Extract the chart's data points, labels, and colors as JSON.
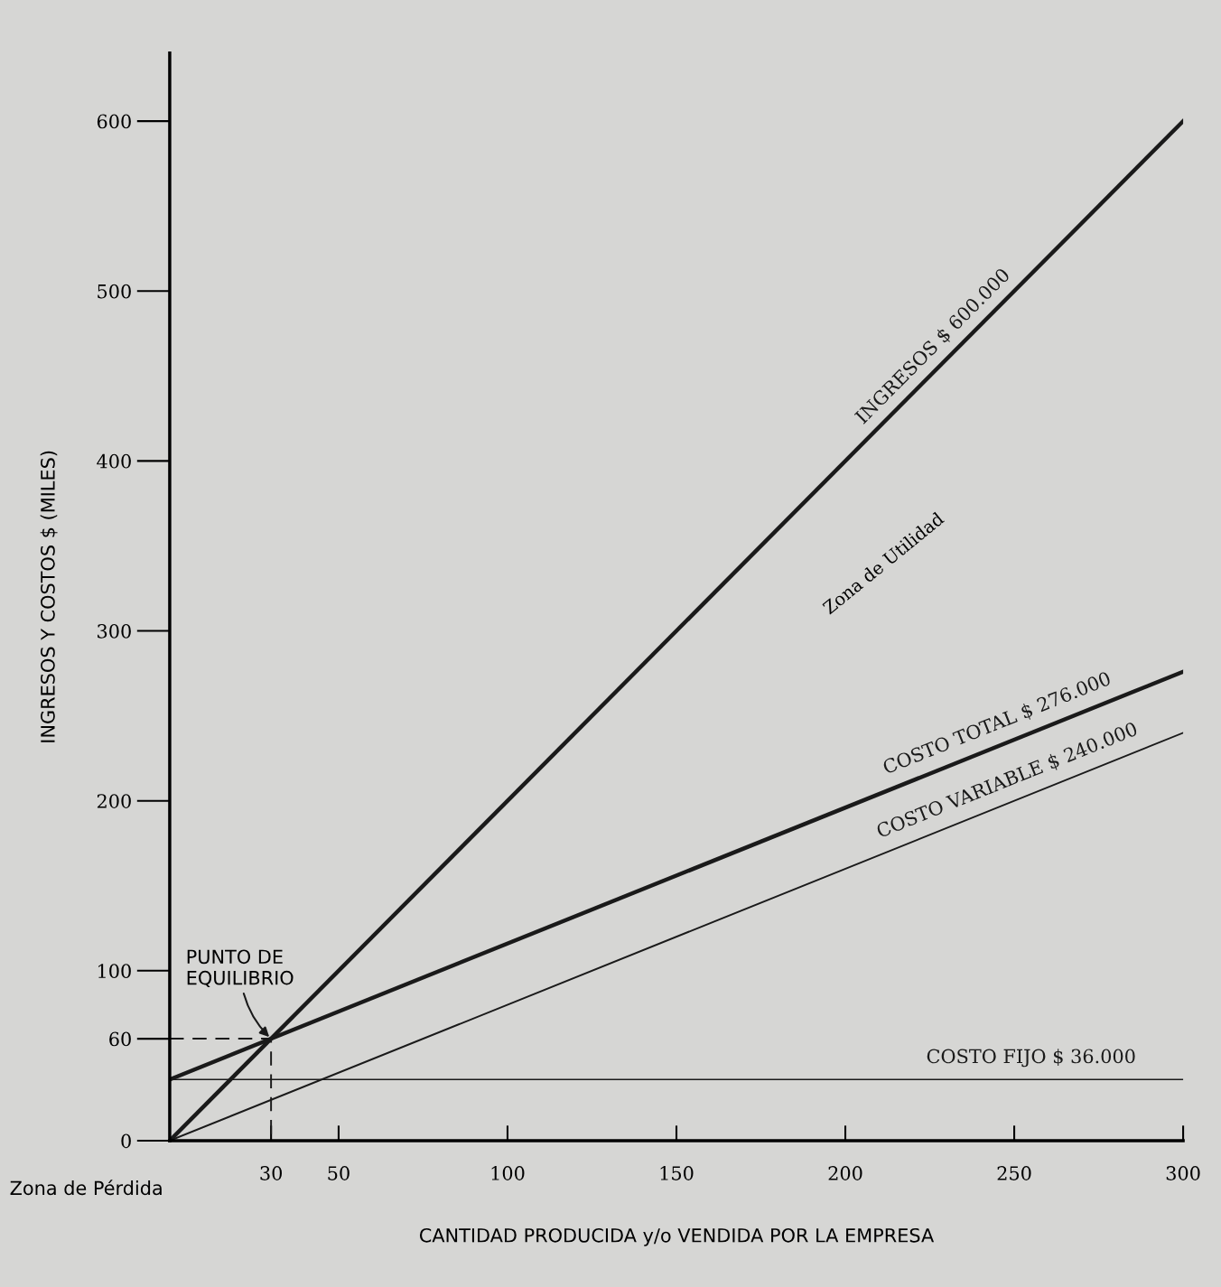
{
  "chart_data": {
    "type": "line",
    "xlabel": "CANTIDAD PRODUCIDA y/o VENDIDA POR LA EMPRESA",
    "ylabel": "INGRESOS Y COSTOS $ (MILES)",
    "xlim": [
      0,
      300
    ],
    "ylim": [
      0,
      640
    ],
    "xticks": [
      30,
      50,
      100,
      150,
      200,
      250,
      300
    ],
    "yticks": [
      0,
      60,
      100,
      200,
      300,
      400,
      500,
      600
    ],
    "grid": false,
    "legend": false,
    "marker": "none",
    "line_style": "solid",
    "series": [
      {
        "name": "INGRESOS $ 600.000",
        "color": "#1a1a1a",
        "x": [
          0,
          300
        ],
        "values": [
          0,
          600
        ]
      },
      {
        "name": "COSTO TOTAL $ 276.000",
        "color": "#1a1a1a",
        "x": [
          0,
          300
        ],
        "values": [
          36,
          276
        ]
      },
      {
        "name": "COSTO VARIABLE $ 240.000",
        "color": "#1a1a1a",
        "x": [
          0,
          300
        ],
        "values": [
          0,
          240
        ]
      },
      {
        "name": "COSTO FIJO $ 36.000",
        "color": "#1a1a1a",
        "x": [
          0,
          300
        ],
        "values": [
          36,
          36
        ]
      },
      {
        "color": "#1a1a1a",
        "x": [
          0,
          30,
          30
        ],
        "values": [
          60,
          60,
          0
        ],
        "line_style": "dashed"
      }
    ],
    "annotations": [
      {
        "text": "PUNTO DE\nEQUILIBRIO",
        "x": 30,
        "y": 60
      },
      "Zona de Utilidad",
      "Zona de Pérdida"
    ]
  }
}
